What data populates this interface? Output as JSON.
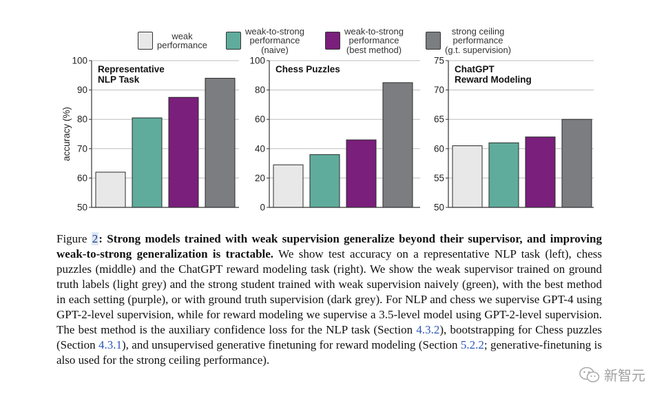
{
  "legend": [
    {
      "label": "weak\nperformance",
      "color": "#e8e8e8"
    },
    {
      "label": "weak-to-strong\nperformance\n(naive)",
      "color": "#5fac9c"
    },
    {
      "label": "weak-to-strong\nperformance\n(best method)",
      "color": "#7a1f7c"
    },
    {
      "label": "strong ceiling\nperformance\n(g.t. supervision)",
      "color": "#7c7d80"
    }
  ],
  "chart_data": [
    {
      "type": "bar",
      "title": "Representative\nNLP Task",
      "ylabel": "accuracy (%)",
      "ylim": [
        50,
        100
      ],
      "yticks": [
        50,
        60,
        70,
        80,
        90,
        100
      ],
      "categories": [
        "weak performance",
        "weak-to-strong performance (naive)",
        "weak-to-strong performance (best method)",
        "strong ceiling performance (g.t. supervision)"
      ],
      "values": [
        62,
        80.5,
        87.5,
        94
      ]
    },
    {
      "type": "bar",
      "title": "Chess Puzzles",
      "ylabel": "",
      "ylim": [
        0,
        100
      ],
      "yticks": [
        0,
        20,
        40,
        60,
        80,
        100
      ],
      "categories": [
        "weak performance",
        "weak-to-strong performance (naive)",
        "weak-to-strong performance (best method)",
        "strong ceiling performance (g.t. supervision)"
      ],
      "values": [
        29,
        36,
        46,
        85
      ]
    },
    {
      "type": "bar",
      "title": "ChatGPT\nReward Modeling",
      "ylabel": "",
      "ylim": [
        50,
        75
      ],
      "yticks": [
        50,
        55,
        60,
        65,
        70,
        75
      ],
      "categories": [
        "weak performance",
        "weak-to-strong performance (naive)",
        "weak-to-strong performance (best method)",
        "strong ceiling performance (g.t. supervision)"
      ],
      "values": [
        60.5,
        61,
        62,
        65
      ]
    }
  ],
  "caption": {
    "label": "Figure ",
    "number": "2",
    "bold": ": Strong models trained with weak supervision generalize beyond their supervisor, and improving weak-to-strong generalization is tractable.",
    "body1": " We show test accuracy on a representative NLP task (left), chess puzzles (middle) and the ChatGPT reward modeling task (right). We show the weak supervisor trained on ground truth labels (light grey) and the strong student trained with weak supervision naively (green), with the best method in each setting (purple), or with ground truth supervision (dark grey). For NLP and chess we supervise GPT-4 using GPT-2-level supervision, while for reward modeling we supervise a 3.5-level model using GPT-2-level supervision. The best method is the auxiliary confidence loss for the NLP task (Section ",
    "ref1": "4.3.2",
    "body2": "), bootstrapping for Chess puzzles (Section ",
    "ref2": "4.3.1",
    "body3": "), and unsupervised generative finetuning for reward modeling (Section ",
    "ref3": "5.2.2",
    "body4": "; generative-finetuning is also used for the strong ceiling performance)."
  },
  "watermark": {
    "text": "新智元",
    "icon": "wechat-icon"
  }
}
